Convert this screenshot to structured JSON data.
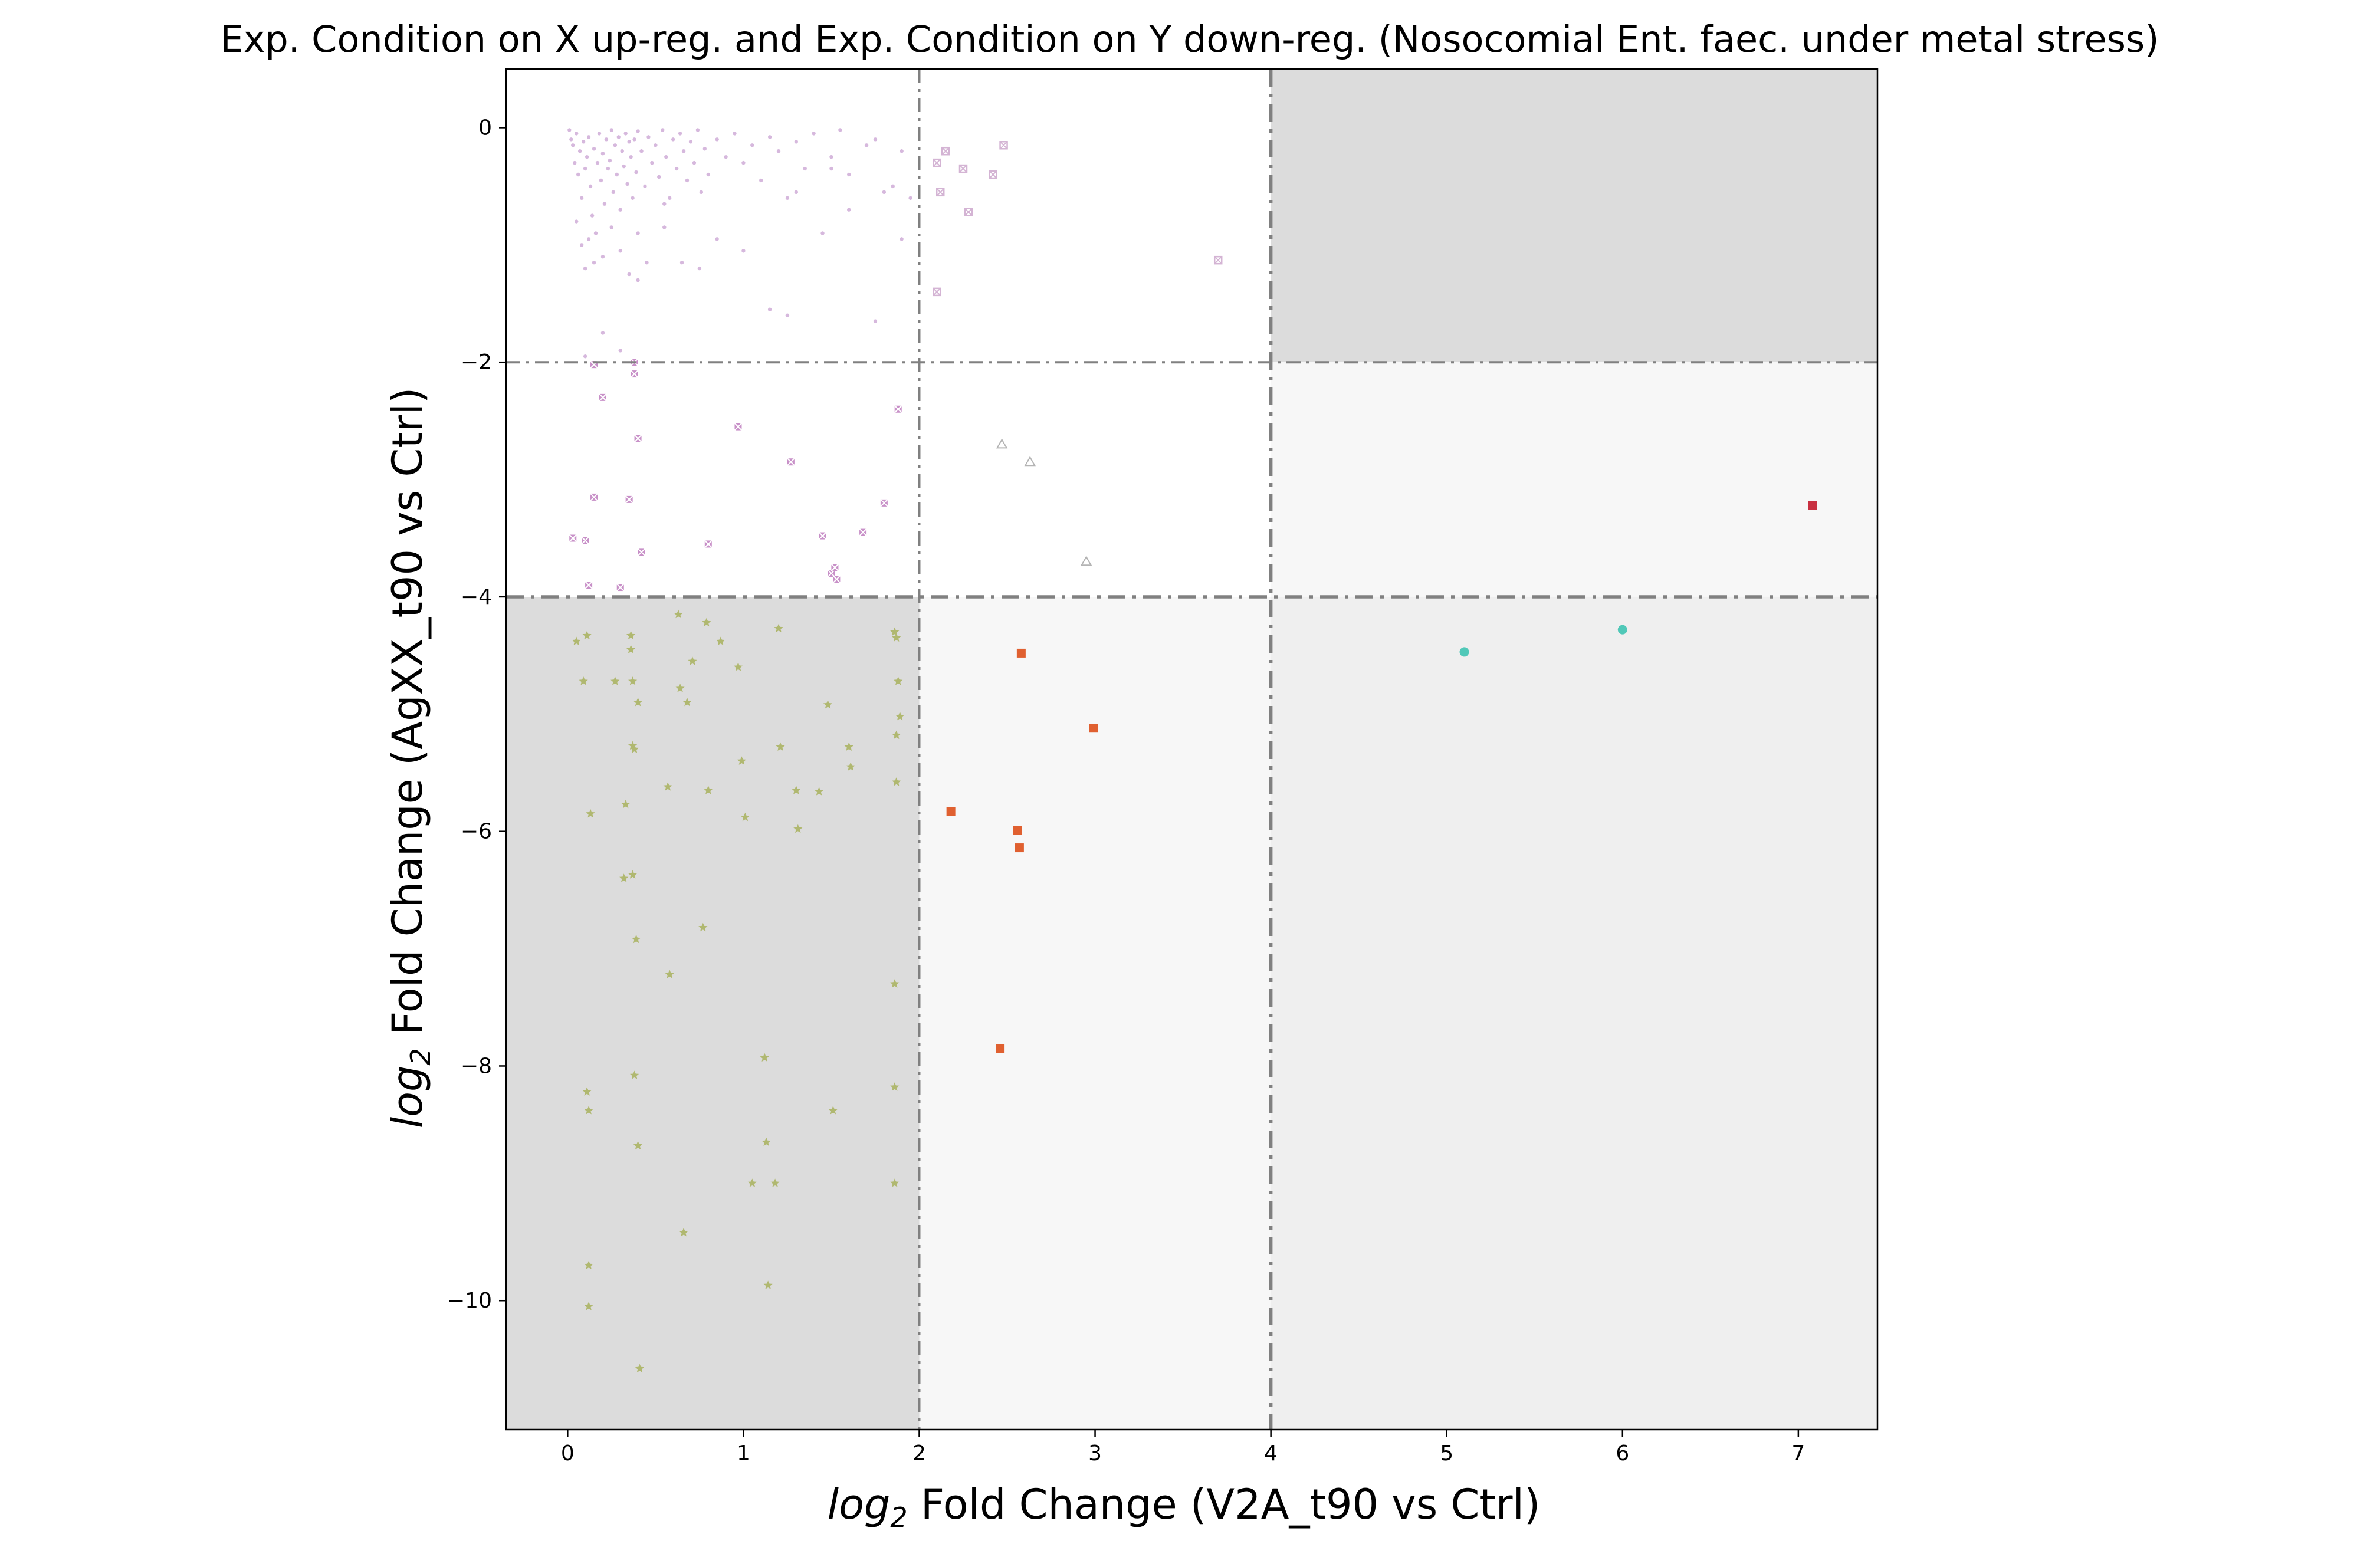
{
  "chart_data": {
    "type": "scatter",
    "title": "Exp. Condition on X up-reg. and Exp. Condition on Y down-reg. (Nosocomial Ent. faec. under metal stress)",
    "xlabel_sub_prefix": "log",
    "xlabel_sub": "2",
    "xlabel_rest": " Fold Change (V2A_t90 vs Ctrl)",
    "ylabel_sub_prefix": "log",
    "ylabel_sub": "2",
    "ylabel_rest": " Fold Change (AgXX_t90 vs Ctrl)",
    "xlim": [
      -0.35,
      7.45
    ],
    "ylim": [
      -11.1,
      0.5
    ],
    "x_ticks": [
      0,
      1,
      2,
      3,
      4,
      5,
      6,
      7
    ],
    "x_tick_labels": [
      "0",
      "1",
      "2",
      "3",
      "4",
      "5",
      "6",
      "7"
    ],
    "y_ticks": [
      0,
      -2,
      -4,
      -6,
      -8,
      -10
    ],
    "y_tick_labels": [
      "0",
      "−2",
      "−4",
      "−6",
      "−8",
      "−10"
    ],
    "grid": false,
    "thresholds": {
      "x": [
        2,
        4
      ],
      "y": [
        -2,
        -4
      ]
    },
    "region_colors": {
      "top_right": "#dcdcdc",
      "bottom_left": "#dcdcdc",
      "mid_right": "#f7f7f7",
      "bottom_middle": "#f7f7f7",
      "bottom_right": "#efefef",
      "threshold_line": "#808080"
    },
    "series": [
      {
        "marker": "dot",
        "color": "#c8a0d2",
        "points": [
          [
            0.01,
            -0.02
          ],
          [
            0.02,
            -0.1
          ],
          [
            0.03,
            -0.15
          ],
          [
            0.04,
            -0.3
          ],
          [
            0.05,
            -0.05
          ],
          [
            0.06,
            -0.4
          ],
          [
            0.07,
            -0.2
          ],
          [
            0.08,
            -0.6
          ],
          [
            0.09,
            -0.12
          ],
          [
            0.1,
            -0.35
          ],
          [
            0.11,
            -0.25
          ],
          [
            0.12,
            -0.08
          ],
          [
            0.13,
            -0.5
          ],
          [
            0.14,
            -0.75
          ],
          [
            0.15,
            -0.18
          ],
          [
            0.16,
            -0.9
          ],
          [
            0.17,
            -0.3
          ],
          [
            0.18,
            -0.05
          ],
          [
            0.19,
            -0.45
          ],
          [
            0.2,
            -0.22
          ],
          [
            0.21,
            -0.65
          ],
          [
            0.22,
            -0.1
          ],
          [
            0.23,
            -0.35
          ],
          [
            0.24,
            -0.28
          ],
          [
            0.25,
            -0.02
          ],
          [
            0.26,
            -0.55
          ],
          [
            0.27,
            -0.15
          ],
          [
            0.28,
            -0.4
          ],
          [
            0.29,
            -0.08
          ],
          [
            0.3,
            -0.7
          ],
          [
            0.31,
            -0.2
          ],
          [
            0.32,
            -0.33
          ],
          [
            0.33,
            -0.05
          ],
          [
            0.34,
            -0.48
          ],
          [
            0.35,
            -0.12
          ],
          [
            0.36,
            -0.25
          ],
          [
            0.37,
            -0.6
          ],
          [
            0.38,
            -0.1
          ],
          [
            0.39,
            -0.38
          ],
          [
            0.4,
            -0.03
          ],
          [
            0.42,
            -0.2
          ],
          [
            0.44,
            -0.5
          ],
          [
            0.46,
            -0.08
          ],
          [
            0.48,
            -0.3
          ],
          [
            0.5,
            -0.15
          ],
          [
            0.52,
            -0.42
          ],
          [
            0.54,
            -0.02
          ],
          [
            0.56,
            -0.25
          ],
          [
            0.58,
            -0.6
          ],
          [
            0.6,
            -0.1
          ],
          [
            0.62,
            -0.35
          ],
          [
            0.64,
            -0.05
          ],
          [
            0.66,
            -0.2
          ],
          [
            0.68,
            -0.45
          ],
          [
            0.7,
            -0.12
          ],
          [
            0.72,
            -0.3
          ],
          [
            0.74,
            -0.02
          ],
          [
            0.76,
            -0.55
          ],
          [
            0.78,
            -0.18
          ],
          [
            0.8,
            -0.4
          ],
          [
            0.85,
            -0.1
          ],
          [
            0.9,
            -0.25
          ],
          [
            0.95,
            -0.05
          ],
          [
            1.0,
            -0.3
          ],
          [
            1.05,
            -0.15
          ],
          [
            1.1,
            -0.45
          ],
          [
            1.15,
            -0.08
          ],
          [
            1.2,
            -0.2
          ],
          [
            1.25,
            -0.6
          ],
          [
            1.3,
            -0.12
          ],
          [
            1.35,
            -0.35
          ],
          [
            1.4,
            -0.05
          ],
          [
            1.5,
            -0.25
          ],
          [
            1.6,
            -0.4
          ],
          [
            1.7,
            -0.15
          ],
          [
            1.8,
            -0.55
          ],
          [
            1.9,
            -0.2
          ],
          [
            1.95,
            -0.6
          ],
          [
            1.55,
            -0.02
          ],
          [
            1.75,
            -0.1
          ],
          [
            0.05,
            -0.8
          ],
          [
            0.08,
            -1.0
          ],
          [
            0.1,
            -1.2
          ],
          [
            0.12,
            -0.95
          ],
          [
            0.15,
            -1.15
          ],
          [
            0.2,
            -1.1
          ],
          [
            0.25,
            -0.85
          ],
          [
            0.3,
            -1.05
          ],
          [
            0.35,
            -1.25
          ],
          [
            0.4,
            -0.9
          ],
          [
            0.45,
            -1.15
          ],
          [
            0.55,
            -0.85
          ],
          [
            0.65,
            -1.15
          ],
          [
            0.75,
            -1.2
          ],
          [
            0.85,
            -0.95
          ],
          [
            1.0,
            -1.05
          ],
          [
            1.15,
            -1.55
          ],
          [
            1.25,
            -1.6
          ],
          [
            1.45,
            -0.9
          ],
          [
            1.5,
            -0.35
          ],
          [
            1.6,
            -0.7
          ],
          [
            1.75,
            -1.65
          ],
          [
            1.85,
            -0.5
          ],
          [
            1.9,
            -0.95
          ],
          [
            0.4,
            -1.3
          ],
          [
            0.2,
            -1.75
          ],
          [
            0.1,
            -1.95
          ],
          [
            0.3,
            -1.9
          ],
          [
            0.55,
            -0.65
          ],
          [
            1.3,
            -0.55
          ]
        ]
      },
      {
        "marker": "cross",
        "color": "#c890c8",
        "points": [
          [
            0.03,
            -3.5
          ],
          [
            0.1,
            -3.52
          ],
          [
            0.12,
            -3.9
          ],
          [
            0.15,
            -3.15
          ],
          [
            0.2,
            -2.3
          ],
          [
            0.3,
            -3.92
          ],
          [
            0.35,
            -3.17
          ],
          [
            0.38,
            -2.1
          ],
          [
            0.4,
            -2.65
          ],
          [
            0.42,
            -3.62
          ],
          [
            0.8,
            -3.55
          ],
          [
            0.97,
            -2.55
          ],
          [
            1.27,
            -2.85
          ],
          [
            1.45,
            -3.48
          ],
          [
            1.5,
            -3.8
          ],
          [
            1.52,
            -3.75
          ],
          [
            1.53,
            -3.85
          ],
          [
            1.68,
            -3.45
          ],
          [
            1.8,
            -3.2
          ],
          [
            1.88,
            -2.4
          ],
          [
            0.15,
            -2.02
          ],
          [
            0.38,
            -2.0
          ]
        ]
      },
      {
        "marker": "square-x",
        "color": "#d4b4d4",
        "points": [
          [
            2.1,
            -0.3
          ],
          [
            2.12,
            -0.55
          ],
          [
            2.15,
            -0.2
          ],
          [
            2.25,
            -0.35
          ],
          [
            2.28,
            -0.72
          ],
          [
            2.42,
            -0.4
          ],
          [
            2.48,
            -0.15
          ],
          [
            2.1,
            -1.4
          ],
          [
            3.7,
            -1.13
          ]
        ]
      },
      {
        "marker": "triangle",
        "color": "#b4b4b4",
        "points": [
          [
            2.47,
            -2.7
          ],
          [
            2.63,
            -2.85
          ],
          [
            2.95,
            -3.7
          ]
        ]
      },
      {
        "marker": "star",
        "color": "#b0b870",
        "points": [
          [
            0.05,
            -4.38
          ],
          [
            0.09,
            -4.72
          ],
          [
            0.11,
            -4.33
          ],
          [
            0.13,
            -5.85
          ],
          [
            0.11,
            -8.22
          ],
          [
            0.12,
            -8.38
          ],
          [
            0.12,
            -9.7
          ],
          [
            0.12,
            -10.05
          ],
          [
            0.27,
            -4.72
          ],
          [
            0.32,
            -6.4
          ],
          [
            0.33,
            -5.77
          ],
          [
            0.36,
            -4.33
          ],
          [
            0.36,
            -4.45
          ],
          [
            0.37,
            -4.72
          ],
          [
            0.37,
            -5.27
          ],
          [
            0.38,
            -5.3
          ],
          [
            0.37,
            -6.37
          ],
          [
            0.38,
            -8.08
          ],
          [
            0.39,
            -6.92
          ],
          [
            0.4,
            -4.9
          ],
          [
            0.4,
            -8.68
          ],
          [
            0.41,
            -10.58
          ],
          [
            0.57,
            -5.62
          ],
          [
            0.58,
            -7.22
          ],
          [
            0.63,
            -4.15
          ],
          [
            0.64,
            -4.78
          ],
          [
            0.66,
            -9.42
          ],
          [
            0.68,
            -4.9
          ],
          [
            0.71,
            -4.55
          ],
          [
            0.77,
            -6.82
          ],
          [
            0.79,
            -4.22
          ],
          [
            0.8,
            -5.65
          ],
          [
            0.87,
            -4.38
          ],
          [
            0.97,
            -4.6
          ],
          [
            0.99,
            -5.4
          ],
          [
            1.01,
            -5.88
          ],
          [
            1.05,
            -9.0
          ],
          [
            1.12,
            -7.93
          ],
          [
            1.13,
            -8.65
          ],
          [
            1.14,
            -9.87
          ],
          [
            1.18,
            -9.0
          ],
          [
            1.2,
            -4.27
          ],
          [
            1.21,
            -5.28
          ],
          [
            1.3,
            -5.65
          ],
          [
            1.31,
            -5.98
          ],
          [
            1.43,
            -5.66
          ],
          [
            1.48,
            -4.92
          ],
          [
            1.51,
            -8.38
          ],
          [
            1.6,
            -5.28
          ],
          [
            1.61,
            -5.45
          ],
          [
            1.86,
            -4.3
          ],
          [
            1.87,
            -4.35
          ],
          [
            1.87,
            -5.58
          ],
          [
            1.86,
            -7.3
          ],
          [
            1.86,
            -8.18
          ],
          [
            1.86,
            -9.0
          ],
          [
            1.87,
            -5.18
          ],
          [
            1.88,
            -4.72
          ],
          [
            1.89,
            -5.02
          ]
        ]
      },
      {
        "marker": "square",
        "color": "#e06030",
        "points": [
          [
            2.18,
            -5.83
          ],
          [
            2.46,
            -7.85
          ],
          [
            2.56,
            -5.99
          ],
          [
            2.57,
            -6.14
          ],
          [
            2.58,
            -4.48
          ],
          [
            2.99,
            -5.12
          ]
        ]
      },
      {
        "marker": "circle",
        "color": "#50c8b8",
        "points": [
          [
            5.1,
            -4.47
          ],
          [
            6.0,
            -4.28
          ]
        ]
      },
      {
        "marker": "square",
        "color": "#c83040",
        "points": [
          [
            7.08,
            -3.22
          ]
        ]
      }
    ]
  }
}
